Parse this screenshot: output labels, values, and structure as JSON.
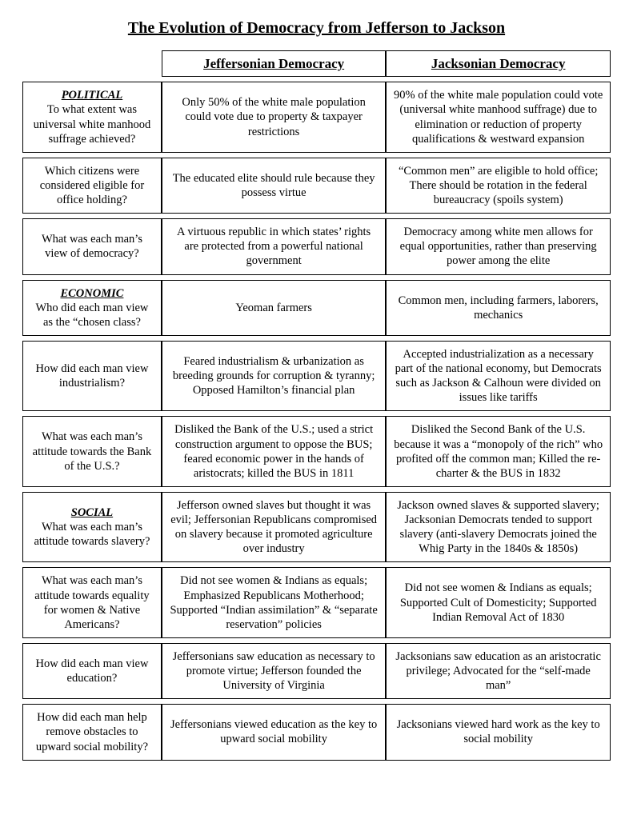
{
  "title": "The Evolution of Democracy from Jefferson to Jackson",
  "headers": {
    "col1": "Jeffersonian Democracy",
    "col2": "Jacksonian Democracy"
  },
  "rows": [
    {
      "category": "POLITICAL",
      "question": "To what extent was universal white manhood suffrage achieved?",
      "jeff": "Only 50% of the white male population could vote due to property & taxpayer restrictions",
      "jack": "90% of the white male population could vote (universal white manhood suffrage) due to elimination or reduction of property qualifications & westward expansion"
    },
    {
      "category": "",
      "question": "Which citizens were considered eligible for office holding?",
      "jeff": "The educated elite should rule because they possess virtue",
      "jack": "“Common men” are eligible to hold office; There should be rotation in the federal bureaucracy (spoils system)"
    },
    {
      "category": "",
      "question": "What was each man’s view of democracy?",
      "jeff": "A virtuous republic in which states’ rights are protected from a powerful national government",
      "jack": "Democracy among white men allows for equal opportunities, rather than preserving power among the elite"
    },
    {
      "category": "ECONOMIC",
      "question": "Who did each man view as the “chosen class?",
      "jeff": "Yeoman farmers",
      "jack": "Common men, including farmers, laborers, mechanics"
    },
    {
      "category": "",
      "question": "How did each man view industrialism?",
      "jeff": "Feared industrialism & urbanization as breeding grounds for corruption & tyranny; Opposed Hamilton’s financial plan",
      "jack": "Accepted industrialization as a necessary part of the national economy, but Democrats such as Jackson & Calhoun were divided on issues like tariffs"
    },
    {
      "category": "",
      "question": "What was each man’s attitude towards the Bank of the U.S.?",
      "jeff": "Disliked the Bank of the U.S.; used a strict construction argument to oppose the BUS; feared economic power in the hands of aristocrats; killed the BUS in 1811",
      "jack": "Disliked the Second Bank of the U.S. because it was a “monopoly of the rich” who profited off the common man; Killed the re-charter & the BUS in 1832"
    },
    {
      "category": "SOCIAL",
      "question": "What was each man’s attitude towards slavery?",
      "jeff": "Jefferson owned slaves but thought it was evil; Jeffersonian Republicans compromised on slavery because it promoted agriculture over industry",
      "jack": "Jackson owned slaves & supported slavery; Jacksonian Democrats tended to support slavery (anti-slavery Democrats joined the Whig Party in the 1840s & 1850s)"
    },
    {
      "category": "",
      "question": "What was each man’s attitude towards equality for women & Native Americans?",
      "jeff": "Did not see women & Indians as equals; Emphasized Republicans Motherhood; Supported “Indian assimilation” & “separate reservation” policies",
      "jack": "Did not see women & Indians as equals; Supported Cult of Domesticity; Supported Indian Removal Act of 1830"
    },
    {
      "category": "",
      "question": "How did each man view education?",
      "jeff": "Jeffersonians saw education as necessary to promote virtue; Jefferson founded the University of Virginia",
      "jack": "Jacksonians saw education as an aristocratic privilege; Advocated for the “self-made man”"
    },
    {
      "category": "",
      "question": "How did each man help remove obstacles to upward social mobility?",
      "jeff": "Jeffersonians viewed education as the key to upward social mobility",
      "jack": "Jacksonians viewed hard work as the key to social mobility"
    }
  ]
}
